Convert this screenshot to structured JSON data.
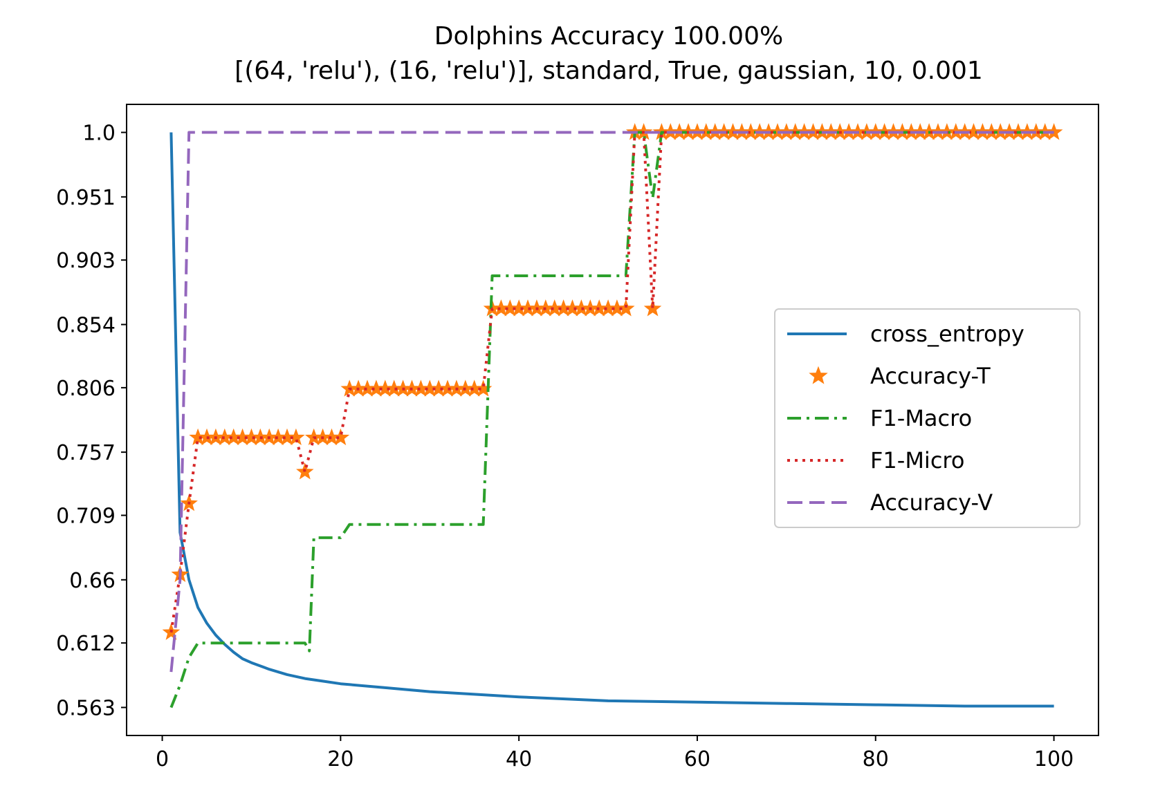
{
  "chart_data": {
    "type": "line",
    "title": "Dolphins Accuracy 100.00%",
    "subtitle": "[(64, 'relu'), (16, 'relu')], standard, True, gaussian, 10, 0.001",
    "xlabel": "",
    "ylabel": "",
    "xlim": [
      -4,
      105
    ],
    "ylim": [
      0.5417,
      1.0213
    ],
    "x_ticks": [
      0,
      20,
      40,
      60,
      80,
      100
    ],
    "x_tick_labels": [
      "0",
      "20",
      "40",
      "60",
      "80",
      "100"
    ],
    "y_ticks": [
      0.563,
      0.612,
      0.66,
      0.709,
      0.757,
      0.806,
      0.854,
      0.903,
      0.951,
      1.0
    ],
    "y_tick_labels": [
      "0.563",
      "0.612",
      "0.66",
      "0.709",
      "0.757",
      "0.806",
      "0.854",
      "0.903",
      "0.951",
      "1.0"
    ],
    "grid": false,
    "legend_position": "center-right",
    "series": [
      {
        "name": "cross_entropy",
        "style": "solid",
        "color": "#1f77b4",
        "points": [
          [
            1,
            1.0
          ],
          [
            2,
            0.696
          ],
          [
            3,
            0.66
          ],
          [
            4,
            0.639
          ],
          [
            5,
            0.627
          ],
          [
            6,
            0.618
          ],
          [
            7,
            0.611
          ],
          [
            8,
            0.605
          ],
          [
            9,
            0.6
          ],
          [
            10,
            0.597
          ],
          [
            12,
            0.592
          ],
          [
            14,
            0.588
          ],
          [
            16,
            0.585
          ],
          [
            18,
            0.583
          ],
          [
            20,
            0.581
          ],
          [
            25,
            0.578
          ],
          [
            30,
            0.575
          ],
          [
            35,
            0.573
          ],
          [
            40,
            0.571
          ],
          [
            50,
            0.568
          ],
          [
            60,
            0.567
          ],
          [
            70,
            0.566
          ],
          [
            80,
            0.565
          ],
          [
            90,
            0.564
          ],
          [
            100,
            0.564
          ]
        ]
      },
      {
        "name": "Accuracy-T",
        "style": "markers",
        "color": "#ff7f0e",
        "points": [
          [
            1,
            0.62
          ],
          [
            2,
            0.664
          ],
          [
            3,
            0.718
          ],
          [
            4,
            0.768
          ],
          [
            5,
            0.768
          ],
          [
            6,
            0.768
          ],
          [
            7,
            0.768
          ],
          [
            8,
            0.768
          ],
          [
            9,
            0.768
          ],
          [
            10,
            0.768
          ],
          [
            11,
            0.768
          ],
          [
            12,
            0.768
          ],
          [
            13,
            0.768
          ],
          [
            14,
            0.768
          ],
          [
            15,
            0.768
          ],
          [
            16,
            0.742
          ],
          [
            17,
            0.768
          ],
          [
            18,
            0.768
          ],
          [
            19,
            0.768
          ],
          [
            20,
            0.768
          ],
          [
            21,
            0.805
          ],
          [
            22,
            0.805
          ],
          [
            23,
            0.805
          ],
          [
            24,
            0.805
          ],
          [
            25,
            0.805
          ],
          [
            26,
            0.805
          ],
          [
            27,
            0.805
          ],
          [
            28,
            0.805
          ],
          [
            29,
            0.805
          ],
          [
            30,
            0.805
          ],
          [
            31,
            0.805
          ],
          [
            32,
            0.805
          ],
          [
            33,
            0.805
          ],
          [
            34,
            0.805
          ],
          [
            35,
            0.805
          ],
          [
            36,
            0.805
          ],
          [
            37,
            0.866
          ],
          [
            38,
            0.866
          ],
          [
            39,
            0.866
          ],
          [
            40,
            0.866
          ],
          [
            41,
            0.866
          ],
          [
            42,
            0.866
          ],
          [
            43,
            0.866
          ],
          [
            44,
            0.866
          ],
          [
            45,
            0.866
          ],
          [
            46,
            0.866
          ],
          [
            47,
            0.866
          ],
          [
            48,
            0.866
          ],
          [
            49,
            0.866
          ],
          [
            50,
            0.866
          ],
          [
            51,
            0.866
          ],
          [
            52,
            0.866
          ],
          [
            53,
            1.0
          ],
          [
            54,
            1.0
          ],
          [
            55,
            0.866
          ],
          [
            56,
            1.0
          ],
          [
            57,
            1.0
          ],
          [
            58,
            1.0
          ],
          [
            59,
            1.0
          ],
          [
            60,
            1.0
          ],
          [
            61,
            1.0
          ],
          [
            62,
            1.0
          ],
          [
            63,
            1.0
          ],
          [
            64,
            1.0
          ],
          [
            65,
            1.0
          ],
          [
            66,
            1.0
          ],
          [
            67,
            1.0
          ],
          [
            68,
            1.0
          ],
          [
            69,
            1.0
          ],
          [
            70,
            1.0
          ],
          [
            71,
            1.0
          ],
          [
            72,
            1.0
          ],
          [
            73,
            1.0
          ],
          [
            74,
            1.0
          ],
          [
            75,
            1.0
          ],
          [
            76,
            1.0
          ],
          [
            77,
            1.0
          ],
          [
            78,
            1.0
          ],
          [
            79,
            1.0
          ],
          [
            80,
            1.0
          ],
          [
            81,
            1.0
          ],
          [
            82,
            1.0
          ],
          [
            83,
            1.0
          ],
          [
            84,
            1.0
          ],
          [
            85,
            1.0
          ],
          [
            86,
            1.0
          ],
          [
            87,
            1.0
          ],
          [
            88,
            1.0
          ],
          [
            89,
            1.0
          ],
          [
            90,
            1.0
          ],
          [
            91,
            1.0
          ],
          [
            92,
            1.0
          ],
          [
            93,
            1.0
          ],
          [
            94,
            1.0
          ],
          [
            95,
            1.0
          ],
          [
            96,
            1.0
          ],
          [
            97,
            1.0
          ],
          [
            98,
            1.0
          ],
          [
            99,
            1.0
          ],
          [
            100,
            1.0
          ]
        ]
      },
      {
        "name": "F1-Macro",
        "style": "dashdot",
        "color": "#2ca02c",
        "points": [
          [
            1,
            0.563
          ],
          [
            2,
            0.58
          ],
          [
            3,
            0.601
          ],
          [
            4,
            0.612
          ],
          [
            5,
            0.612
          ],
          [
            16,
            0.612
          ],
          [
            16.5,
            0.606
          ],
          [
            17,
            0.692
          ],
          [
            20,
            0.692
          ],
          [
            21,
            0.702
          ],
          [
            36,
            0.702
          ],
          [
            37,
            0.891
          ],
          [
            52,
            0.891
          ],
          [
            53,
            1.0
          ],
          [
            54,
            1.0
          ],
          [
            55,
            0.95
          ],
          [
            56,
            1.0
          ],
          [
            100,
            1.0
          ]
        ]
      },
      {
        "name": "F1-Micro",
        "style": "dotted",
        "color": "#d62728",
        "points": [
          [
            1,
            0.62
          ],
          [
            2,
            0.664
          ],
          [
            3,
            0.718
          ],
          [
            4,
            0.768
          ],
          [
            15,
            0.768
          ],
          [
            16,
            0.742
          ],
          [
            17,
            0.768
          ],
          [
            20,
            0.768
          ],
          [
            21,
            0.805
          ],
          [
            36,
            0.805
          ],
          [
            37,
            0.866
          ],
          [
            52,
            0.866
          ],
          [
            53,
            1.0
          ],
          [
            54,
            1.0
          ],
          [
            55,
            0.866
          ],
          [
            56,
            1.0
          ],
          [
            100,
            1.0
          ]
        ]
      },
      {
        "name": "Accuracy-V",
        "style": "dashed",
        "color": "#9467bd",
        "points": [
          [
            1,
            0.59
          ],
          [
            2,
            0.66
          ],
          [
            3,
            1.0
          ],
          [
            100,
            1.0
          ]
        ]
      }
    ]
  }
}
